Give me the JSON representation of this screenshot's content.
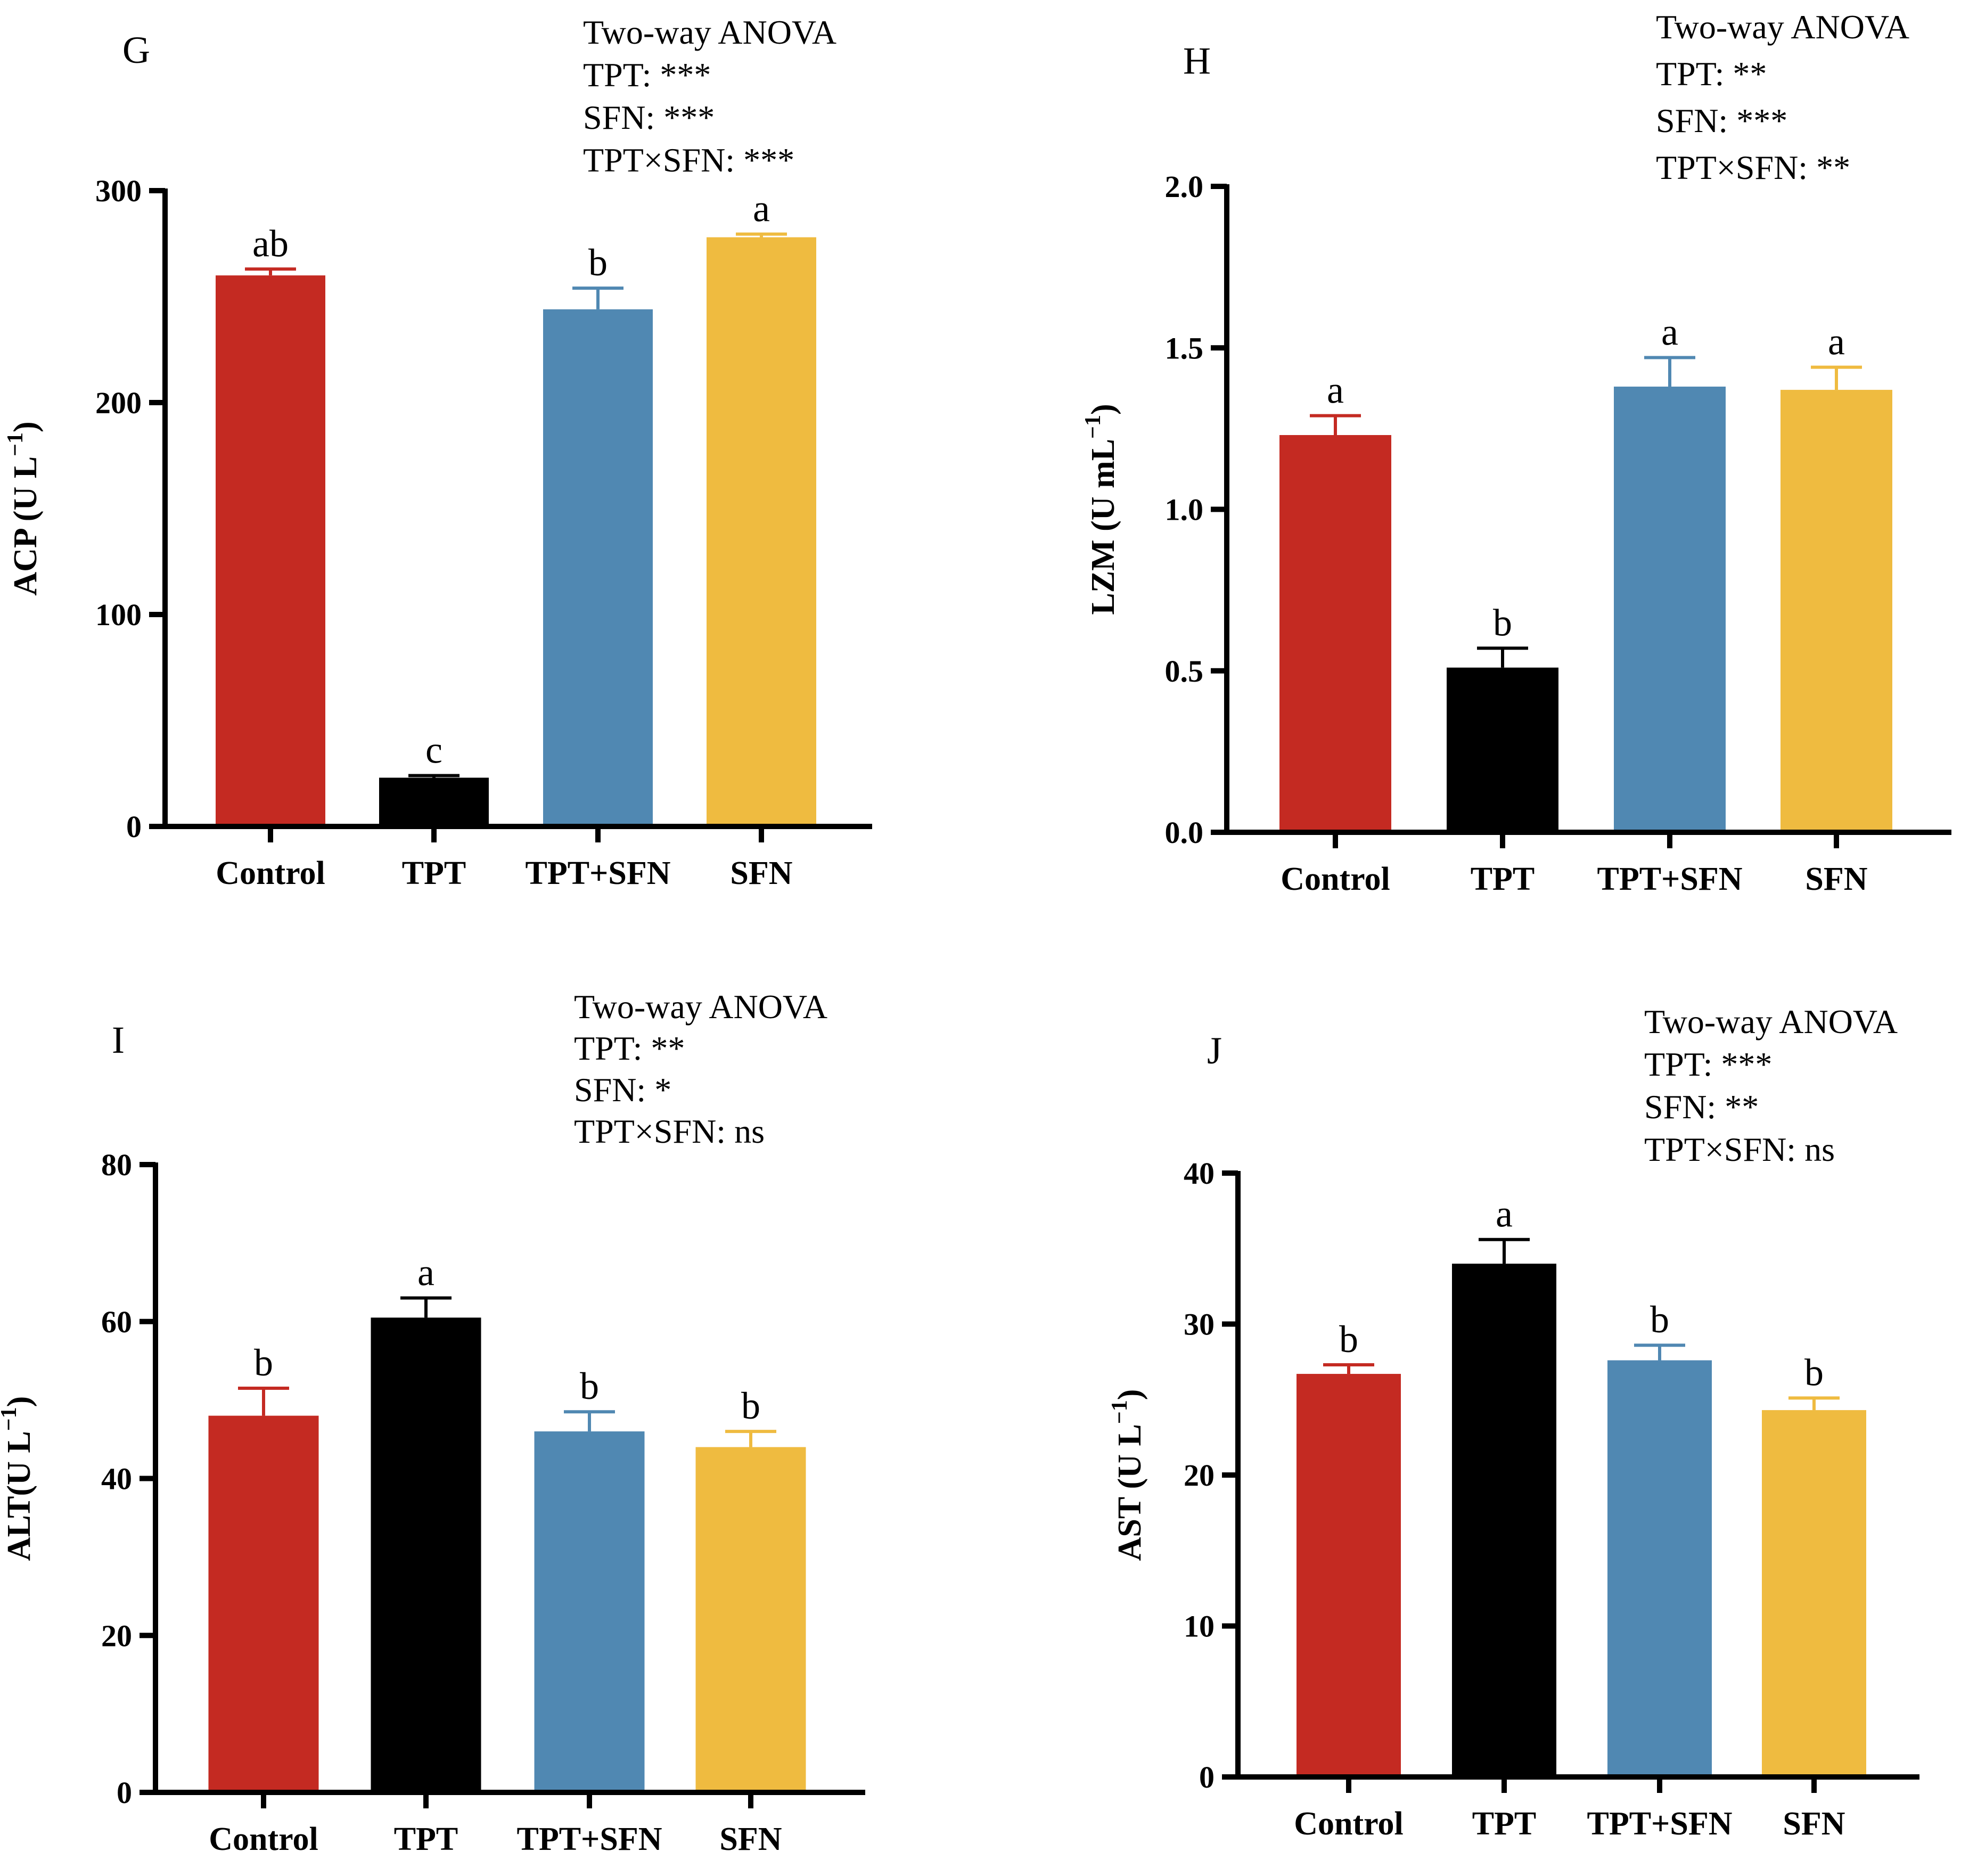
{
  "colors": {
    "Control": "#c42a22",
    "TPT": "#000000",
    "TPT+SFN": "#5088b2",
    "SFN": "#efbb40"
  },
  "chart_data": [
    {
      "type": "bar",
      "panel": "G",
      "categories": [
        "Control",
        "TPT",
        "TPT+SFN",
        "SFN"
      ],
      "values": [
        260,
        23,
        244,
        278
      ],
      "errors": [
        3,
        1,
        10,
        1.5
      ],
      "letters": [
        "ab",
        "c",
        "b",
        "a"
      ],
      "ylabel": "ACP (U L",
      "ylabel_sup": "−1",
      "ylabel_close": ")",
      "ylim": [
        0,
        300
      ],
      "yticks": [
        0,
        100,
        200,
        300
      ],
      "tick_labels": [
        "0",
        "100",
        "200",
        "300"
      ],
      "anova": [
        "Two-way ANOVA",
        "TPT: ***",
        "SFN: ***",
        "TPT×SFN: ***"
      ]
    },
    {
      "type": "bar",
      "panel": "H",
      "categories": [
        "Control",
        "TPT",
        "TPT+SFN",
        "SFN"
      ],
      "values": [
        1.23,
        0.51,
        1.38,
        1.37
      ],
      "errors": [
        0.06,
        0.06,
        0.09,
        0.07
      ],
      "letters": [
        "a",
        "b",
        "a",
        "a"
      ],
      "ylabel": "LZM (U mL",
      "ylabel_sup": "−1",
      "ylabel_close": ")",
      "ylim": [
        0,
        2.0
      ],
      "yticks": [
        0,
        0.5,
        1.0,
        1.5,
        2.0
      ],
      "tick_labels": [
        "0.0",
        "0.5",
        "1.0",
        "1.5",
        "2.0"
      ],
      "anova": [
        "Two-way ANOVA",
        "TPT: **",
        "SFN: ***",
        "TPT×SFN: **"
      ]
    },
    {
      "type": "bar",
      "panel": "I",
      "categories": [
        "Control",
        "TPT",
        "TPT+SFN",
        "SFN"
      ],
      "values": [
        48,
        60.5,
        46,
        44
      ],
      "errors": [
        3.5,
        2.5,
        2.5,
        2
      ],
      "letters": [
        "b",
        "a",
        "b",
        "b"
      ],
      "ylabel": "ALT(U L",
      "ylabel_sup": "−1",
      "ylabel_close": ")",
      "ylim": [
        0,
        80
      ],
      "yticks": [
        0,
        20,
        40,
        60,
        80
      ],
      "tick_labels": [
        "0",
        "20",
        "40",
        "60",
        "80"
      ],
      "anova": [
        "Two-way ANOVA",
        "TPT: **",
        "SFN: *",
        "TPT×SFN: ns"
      ]
    },
    {
      "type": "bar",
      "panel": "J",
      "categories": [
        "Control",
        "TPT",
        "TPT+SFN",
        "SFN"
      ],
      "values": [
        26.7,
        34,
        27.6,
        24.3
      ],
      "errors": [
        0.6,
        1.6,
        1,
        0.8
      ],
      "letters": [
        "b",
        "a",
        "b",
        "b"
      ],
      "ylabel": "AST (U L",
      "ylabel_sup": "−1",
      "ylabel_close": ")",
      "ylim": [
        0,
        40
      ],
      "yticks": [
        0,
        10,
        20,
        30,
        40
      ],
      "tick_labels": [
        "0",
        "10",
        "20",
        "30",
        "40"
      ],
      "anova": [
        "Two-way ANOVA",
        "TPT: ***",
        "SFN: **",
        "TPT×SFN: ns"
      ]
    }
  ]
}
